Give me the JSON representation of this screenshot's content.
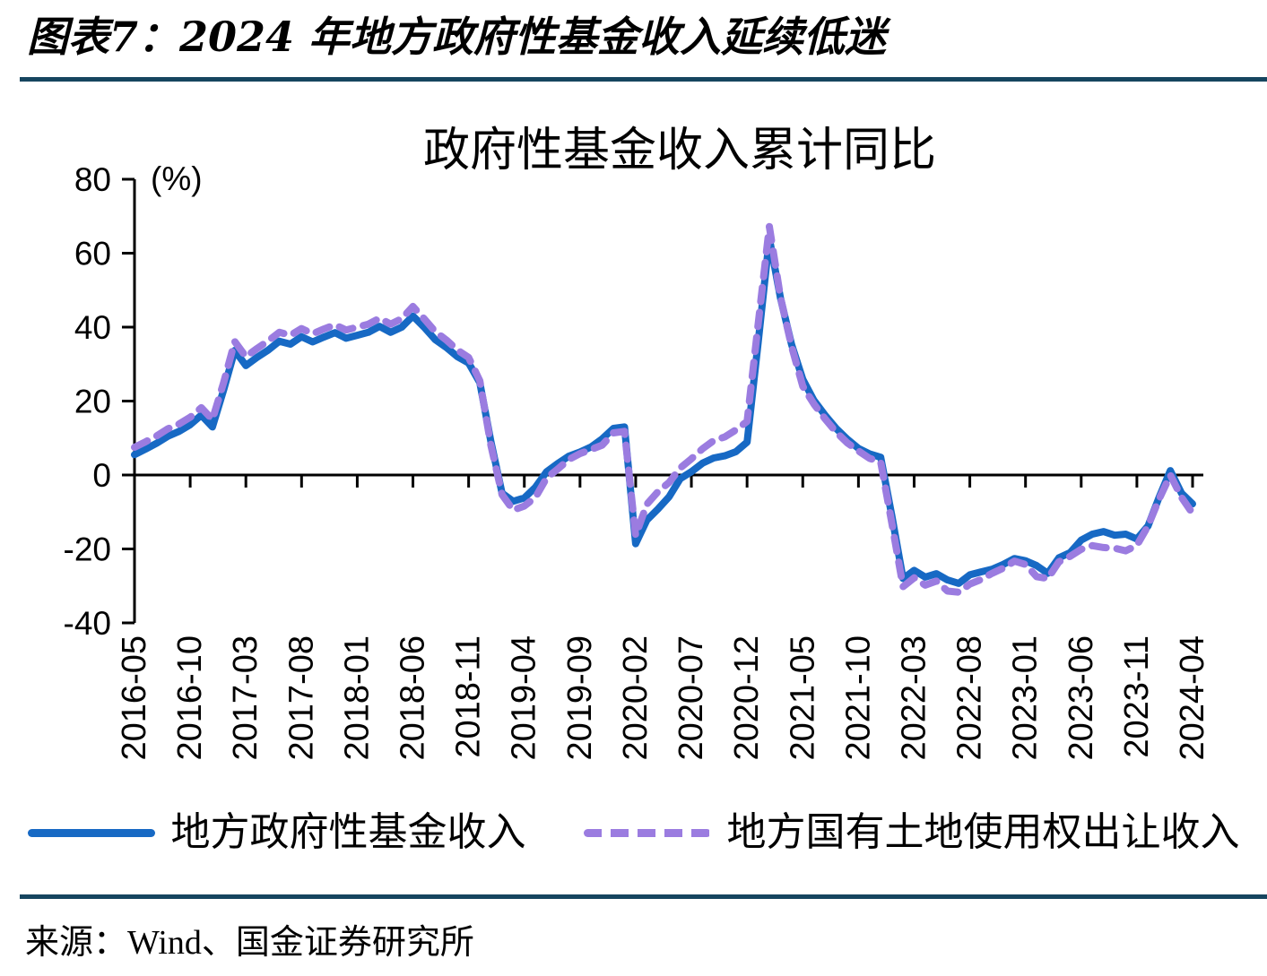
{
  "figure": {
    "caption": "图表7：2024 年地方政府性基金收入延续低迷",
    "source": "来源：Wind、国金证券研究所",
    "divider_color": "#16455f"
  },
  "chart_data": {
    "type": "line",
    "title": "政府性基金收入累计同比",
    "unit_label": "(%)",
    "ylim": [
      -40,
      80
    ],
    "yticks": [
      80,
      60,
      40,
      20,
      0,
      -20,
      -40
    ],
    "grid": false,
    "legend_position": "bottom",
    "x_start": "2016-05",
    "x_end": "2024-04",
    "x_frequency": "monthly",
    "label_every": 5,
    "x_tick_labels": [
      "2016-05",
      "2016-10",
      "2017-03",
      "2017-08",
      "2018-01",
      "2018-06",
      "2018-11",
      "2019-04",
      "2019-09",
      "2020-02",
      "2020-07",
      "2020-12",
      "2021-05",
      "2021-10",
      "2022-03",
      "2022-08",
      "2023-01",
      "2023-06",
      "2023-11",
      "2024-04"
    ],
    "series": [
      {
        "name": "地方政府性基金收入",
        "style": "solid",
        "color": "#1769c4",
        "values": [
          5.5,
          7.0,
          8.6,
          10.5,
          11.8,
          13.6,
          16.2,
          13.0,
          23.0,
          33.7,
          29.6,
          31.8,
          33.8,
          36.2,
          35.4,
          37.4,
          36.0,
          37.3,
          38.5,
          37.0,
          37.8,
          38.6,
          40.2,
          38.6,
          40.0,
          43.0,
          40.0,
          36.6,
          34.5,
          32.0,
          30.3,
          25.0,
          9.0,
          -4.9,
          -7.1,
          -6.2,
          -3.3,
          0.9,
          3.1,
          5.1,
          6.2,
          7.6,
          9.8,
          12.6,
          13.0,
          -18.6,
          -12.2,
          -9.2,
          -5.9,
          -1.0,
          0.9,
          3.2,
          4.6,
          5.2,
          6.3,
          8.9,
          36.0,
          64.0,
          47.9,
          35.3,
          25.9,
          20.2,
          16.2,
          12.6,
          9.7,
          7.2,
          5.7,
          4.8,
          -11.0,
          -28.0,
          -25.8,
          -27.6,
          -26.7,
          -28.4,
          -29.3,
          -27.0,
          -26.2,
          -25.5,
          -24.2,
          -22.6,
          -23.2,
          -24.5,
          -26.6,
          -22.4,
          -21.0,
          -17.6,
          -16.0,
          -15.3,
          -16.3,
          -16.0,
          -17.3,
          -13.8,
          -6.0,
          1.2,
          -4.9,
          -7.8
        ]
      },
      {
        "name": "地方国有土地使用权出让收入",
        "style": "dashed",
        "color": "#9b7ce0",
        "values": [
          7.5,
          9.0,
          10.6,
          12.5,
          13.8,
          15.6,
          18.2,
          15.0,
          25.0,
          36.1,
          32.0,
          34.2,
          36.3,
          38.6,
          37.8,
          39.6,
          38.2,
          39.5,
          40.6,
          39.2,
          40.0,
          40.8,
          42.4,
          40.8,
          42.3,
          45.6,
          42.3,
          38.8,
          36.5,
          33.8,
          31.8,
          25.5,
          8.0,
          -5.3,
          -9.5,
          -8.4,
          -6.0,
          -0.8,
          1.6,
          4.2,
          5.8,
          6.9,
          8.1,
          11.4,
          11.8,
          -16.4,
          -7.9,
          -4.5,
          -2.0,
          1.9,
          4.4,
          7.1,
          9.3,
          10.3,
          12.2,
          14.5,
          41.0,
          67.2,
          48.1,
          34.8,
          24.0,
          19.2,
          15.2,
          11.6,
          8.7,
          6.5,
          4.5,
          3.5,
          -13.0,
          -30.2,
          -27.8,
          -29.8,
          -28.7,
          -31.4,
          -31.7,
          -29.5,
          -28.3,
          -26.6,
          -25.2,
          -23.3,
          -24.2,
          -27.5,
          -28.0,
          -23.5,
          -22.0,
          -20.1,
          -19.1,
          -19.6,
          -19.8,
          -20.5,
          -19.0,
          -13.8,
          -6.5,
          0.0,
          -6.0,
          -10.4
        ]
      }
    ]
  }
}
